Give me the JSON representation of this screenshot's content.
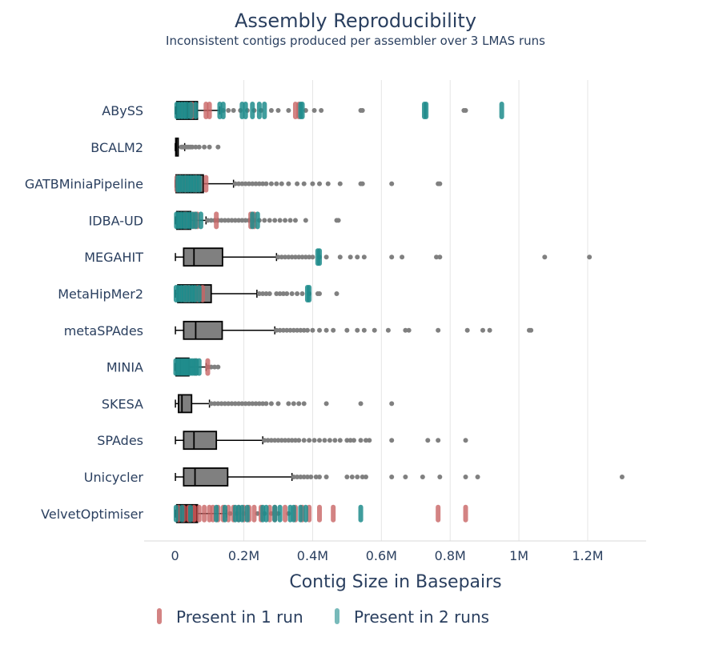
{
  "chart_data": {
    "type": "box",
    "title": "Assembly Reproducibility",
    "subtitle": "Inconsistent contigs produced per assembler over 3 LMAS runs",
    "xlabel": "Contig Size in Basepairs",
    "ylabel": "",
    "xlim": [
      -90000,
      1370000
    ],
    "x_ticks": [
      0,
      200000,
      400000,
      600000,
      800000,
      1000000,
      1200000
    ],
    "x_tick_labels": [
      "0",
      "0.2M",
      "0.4M",
      "0.6M",
      "0.8M",
      "1M",
      "1.2M"
    ],
    "grid": "vertical",
    "legend_position": "bottom",
    "colors": {
      "box_fill": "#808080",
      "box_line": "#000000",
      "outlier": "#808080",
      "present_1_run": "#c86464",
      "present_2_runs": "#1e8c8c",
      "velvet_box_fill": "#8b0000",
      "grid": "#e5e5e5"
    },
    "legend": [
      {
        "label": "Present in 1 run",
        "color": "#c86464"
      },
      {
        "label": "Present in 2 runs",
        "color": "#1e8c8c"
      }
    ],
    "series": [
      {
        "name": "ABySS",
        "box": {
          "min": 1000,
          "q1": 5000,
          "median": 35000,
          "q3": 65000,
          "max": 130000
        },
        "outliers": [
          140000,
          155000,
          170000,
          190000,
          210000,
          230000,
          250000,
          280000,
          300000,
          330000,
          380000,
          405000,
          425000,
          540000,
          545000,
          840000,
          845000
        ],
        "run1": [
          50000,
          90000,
          100000,
          350000,
          360000
        ],
        "run2": [
          5000,
          12000,
          20000,
          28000,
          35000,
          45000,
          60000,
          130000,
          140000,
          195000,
          205000,
          225000,
          245000,
          260000,
          365000,
          370000,
          725000,
          730000,
          950000
        ]
      },
      {
        "name": "BCALM2",
        "box": {
          "min": 500,
          "q1": 2000,
          "median": 4000,
          "q3": 9000,
          "max": 28000
        },
        "outliers": [
          18000,
          22000,
          25000,
          30000,
          35000,
          40000,
          45000,
          50000,
          60000,
          70000,
          85000,
          100000,
          125000
        ],
        "run1": [],
        "run2": []
      },
      {
        "name": "GATBMiniaPipeline",
        "box": {
          "min": 1000,
          "q1": 3000,
          "median": 25000,
          "q3": 82000,
          "max": 170000
        },
        "outliers": [
          175000,
          185000,
          195000,
          205000,
          215000,
          225000,
          235000,
          245000,
          255000,
          265000,
          280000,
          295000,
          310000,
          330000,
          355000,
          375000,
          400000,
          420000,
          445000,
          480000,
          540000,
          545000,
          630000,
          765000,
          770000
        ],
        "run1": [
          5000,
          15000,
          30000,
          60000,
          90000
        ],
        "run2": [
          8000,
          14000,
          22000,
          30000,
          38000,
          46000,
          54000,
          62000,
          70000
        ]
      },
      {
        "name": "IDBA-UD",
        "box": {
          "min": 1000,
          "q1": 5000,
          "median": 22000,
          "q3": 45000,
          "max": 90000
        },
        "outliers": [
          95000,
          105000,
          115000,
          125000,
          135000,
          145000,
          155000,
          165000,
          175000,
          185000,
          195000,
          205000,
          215000,
          230000,
          245000,
          260000,
          275000,
          290000,
          305000,
          320000,
          335000,
          350000,
          380000,
          470000,
          475000
        ],
        "run1": [
          30000,
          55000,
          65000,
          120000,
          220000,
          230000
        ],
        "run2": [
          4000,
          10000,
          18000,
          26000,
          34000,
          42000,
          50000,
          60000,
          75000,
          225000,
          240000
        ]
      },
      {
        "name": "MEGAHIT",
        "box": {
          "min": 1000,
          "q1": 25000,
          "median": 55000,
          "q3": 138000,
          "max": 295000
        },
        "outliers": [
          300000,
          310000,
          320000,
          330000,
          340000,
          350000,
          360000,
          370000,
          380000,
          390000,
          400000,
          420000,
          440000,
          480000,
          510000,
          530000,
          550000,
          630000,
          660000,
          760000,
          770000,
          1075000,
          1205000
        ],
        "run1": [],
        "run2": [
          415000,
          420000
        ]
      },
      {
        "name": "MetaHipMer2",
        "box": {
          "min": 1000,
          "q1": 8000,
          "median": 38000,
          "q3": 105000,
          "max": 238000
        },
        "outliers": [
          245000,
          255000,
          265000,
          275000,
          295000,
          305000,
          315000,
          325000,
          340000,
          355000,
          370000,
          390000,
          415000,
          420000,
          470000
        ],
        "run1": [
          30000,
          40000,
          65000,
          80000
        ],
        "run2": [
          3000,
          10000,
          18000,
          26000,
          34000,
          42000,
          50000,
          58000,
          70000,
          385000,
          390000
        ]
      },
      {
        "name": "metaSPAdes",
        "box": {
          "min": 1000,
          "q1": 25000,
          "median": 60000,
          "q3": 137000,
          "max": 290000
        },
        "outliers": [
          295000,
          305000,
          315000,
          325000,
          335000,
          345000,
          355000,
          365000,
          375000,
          385000,
          400000,
          420000,
          440000,
          460000,
          500000,
          530000,
          550000,
          580000,
          620000,
          670000,
          680000,
          765000,
          850000,
          895000,
          915000,
          1030000,
          1035000
        ],
        "run1": [],
        "run2": []
      },
      {
        "name": "MINIA",
        "box": {
          "min": 500,
          "q1": 3000,
          "median": 15000,
          "q3": 40000,
          "max": 90000
        },
        "outliers": [
          95000,
          105000,
          115000,
          125000
        ],
        "run1": [
          60000,
          95000
        ],
        "run2": [
          2000,
          8000,
          14000,
          20000,
          26000,
          32000,
          38000,
          44000,
          50000,
          56000,
          62000,
          70000
        ]
      },
      {
        "name": "SKESA",
        "box": {
          "min": 1000,
          "q1": 10000,
          "median": 20000,
          "q3": 48000,
          "max": 100000
        },
        "outliers": [
          105000,
          115000,
          125000,
          135000,
          145000,
          155000,
          165000,
          175000,
          185000,
          195000,
          205000,
          215000,
          225000,
          235000,
          245000,
          255000,
          265000,
          280000,
          300000,
          330000,
          345000,
          360000,
          375000,
          440000,
          540000,
          630000
        ],
        "run1": [],
        "run2": []
      },
      {
        "name": "SPAdes",
        "box": {
          "min": 1000,
          "q1": 25000,
          "median": 55000,
          "q3": 120000,
          "max": 255000
        },
        "outliers": [
          260000,
          270000,
          280000,
          290000,
          300000,
          310000,
          320000,
          330000,
          340000,
          350000,
          360000,
          375000,
          390000,
          405000,
          420000,
          435000,
          450000,
          465000,
          480000,
          500000,
          510000,
          520000,
          540000,
          555000,
          565000,
          630000,
          735000,
          765000,
          845000
        ],
        "run1": [],
        "run2": []
      },
      {
        "name": "Unicycler",
        "box": {
          "min": 1000,
          "q1": 25000,
          "median": 58000,
          "q3": 153000,
          "max": 340000
        },
        "outliers": [
          345000,
          355000,
          365000,
          375000,
          385000,
          395000,
          410000,
          420000,
          440000,
          500000,
          515000,
          530000,
          545000,
          555000,
          630000,
          670000,
          720000,
          770000,
          845000,
          880000,
          1300000
        ],
        "run1": [],
        "run2": []
      },
      {
        "name": "VelvetOptimiser",
        "box": {
          "min": 1000,
          "q1": 5000,
          "median": 30000,
          "q3": 65000,
          "max": 150000
        },
        "outliers": [
          160000,
          180000,
          200000,
          240000,
          260000,
          280000,
          300000,
          330000
        ],
        "run1": [
          10000,
          25000,
          40000,
          55000,
          70000,
          85000,
          100000,
          110000,
          125000,
          140000,
          155000,
          170000,
          185000,
          200000,
          215000,
          230000,
          250000,
          275000,
          290000,
          320000,
          350000,
          370000,
          390000,
          420000,
          460000,
          765000,
          845000
        ],
        "run2": [
          3000,
          20000,
          45000,
          120000,
          145000,
          175000,
          185000,
          195000,
          210000,
          255000,
          265000,
          290000,
          305000,
          335000,
          345000,
          365000,
          380000,
          540000
        ]
      }
    ]
  }
}
